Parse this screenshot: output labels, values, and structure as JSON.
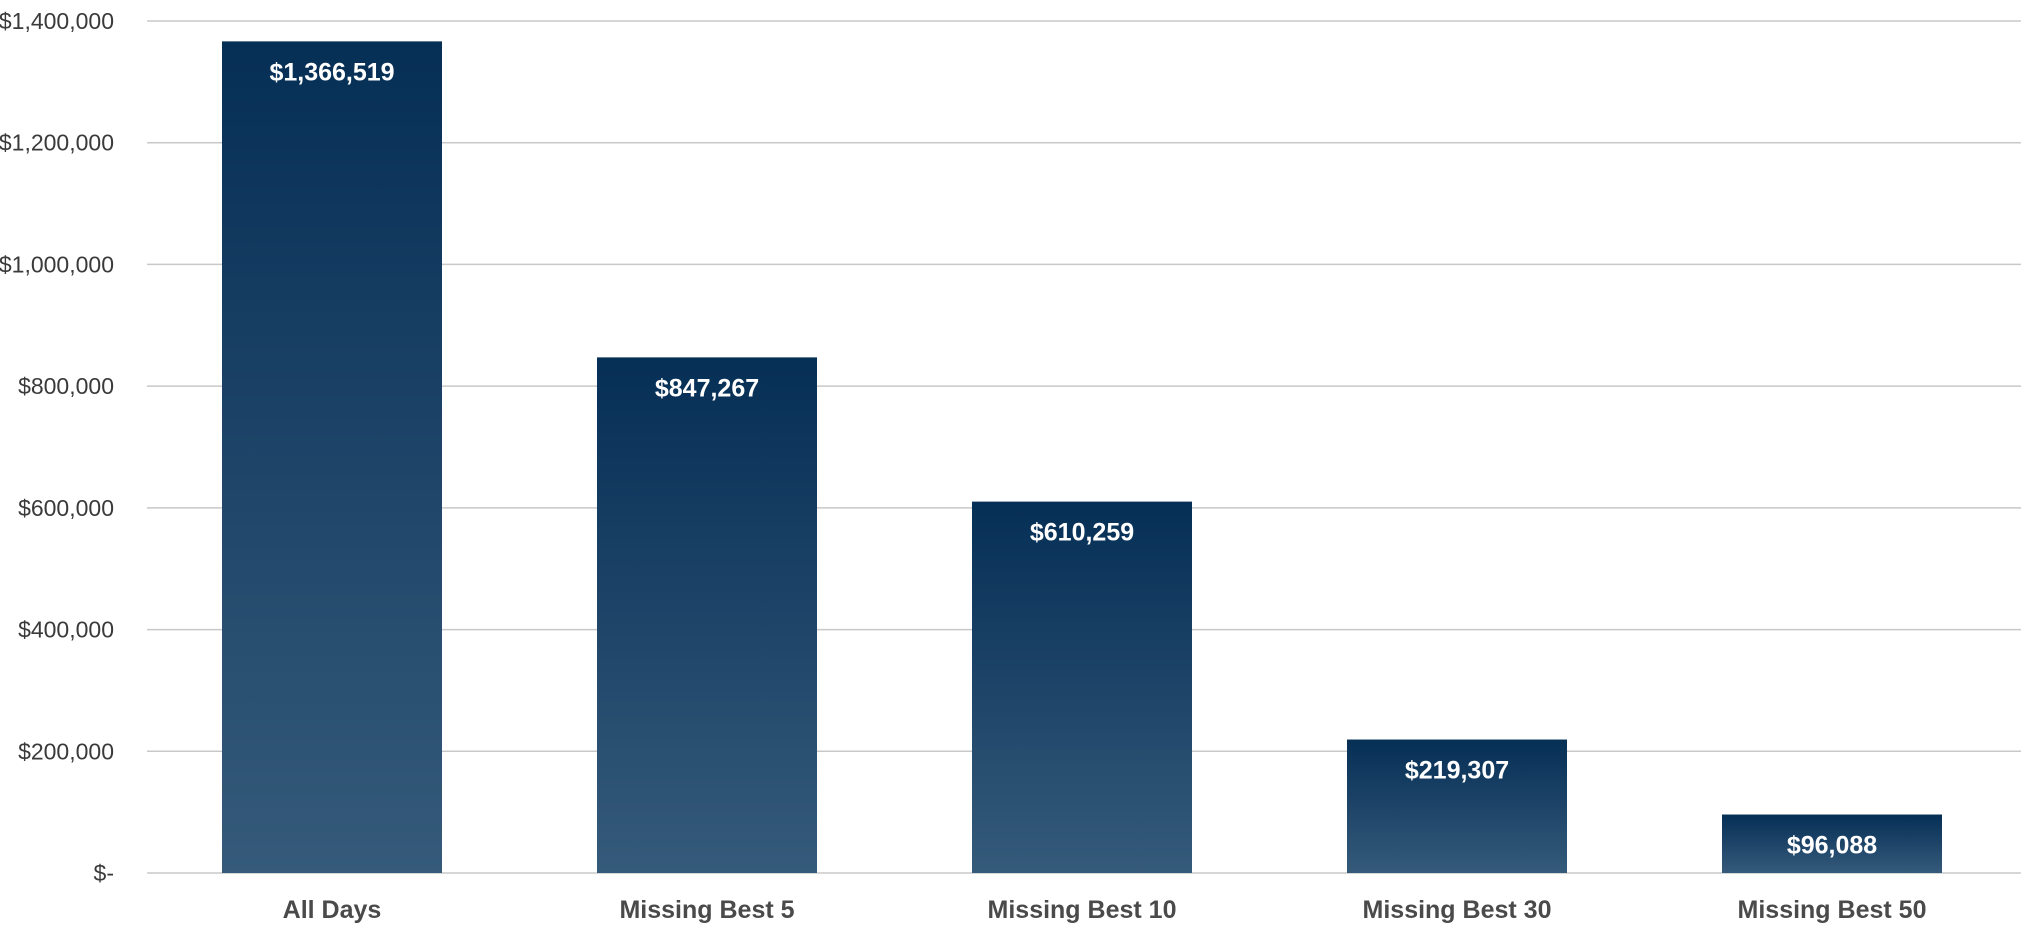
{
  "chart_data": {
    "type": "bar",
    "title": "",
    "xlabel": "",
    "ylabel": "",
    "categories": [
      "All Days",
      "Missing Best 5",
      "Missing Best 10",
      "Missing Best 30",
      "Missing Best 50"
    ],
    "values": [
      1366519,
      847267,
      610259,
      219307,
      96088
    ],
    "data_labels": [
      "$1,366,519",
      "$847,267",
      "$610,259",
      "$219,307",
      "$96,088"
    ],
    "ylim": [
      0,
      1400000
    ],
    "y_ticks": [
      0,
      200000,
      400000,
      600000,
      800000,
      1000000,
      1200000,
      1400000
    ],
    "y_tick_labels": [
      "$-",
      "$200,000",
      "$400,000",
      "$600,000",
      "$800,000",
      "$1,000,000",
      "$1,200,000",
      "$1,400,000"
    ],
    "grid": true,
    "legend": "none",
    "colors": {
      "bar_top": "#062f56",
      "bar_bottom": "#355a7a",
      "grid": "#c8c8c8",
      "label_text": "#ffffff"
    }
  }
}
